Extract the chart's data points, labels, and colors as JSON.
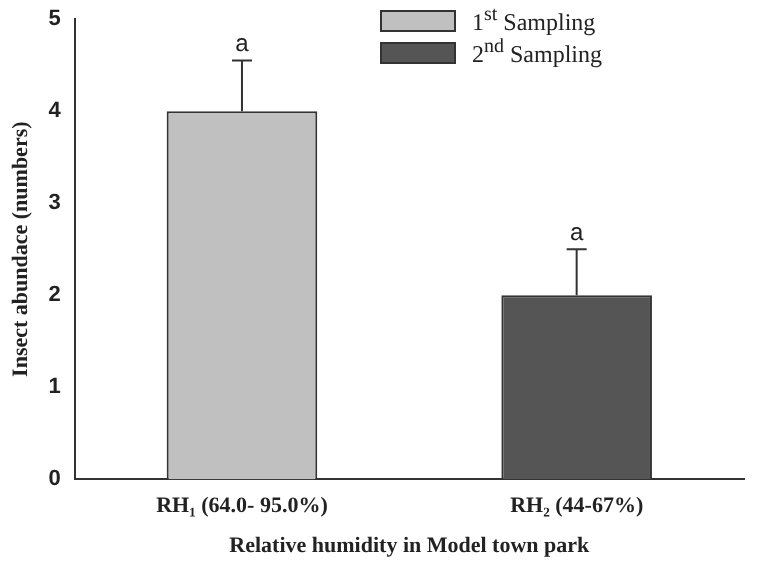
{
  "chart_data": {
    "type": "bar",
    "xlabel": "Relative humidity in Model town park",
    "ylabel": "Insect abundace (numbers)",
    "categories": [
      "RH₁ (64.0- 95.0%)",
      "RH₂ (44-67%)"
    ],
    "series": [
      {
        "name": "1$^{st}$ Sampling",
        "color": "#c0c0c0",
        "values": [
          4,
          null
        ],
        "errors": [
          [
            4,
            4.55
          ],
          null
        ]
      },
      {
        "name": "2$^{nd}$ Sampling",
        "color": "#555555",
        "values": [
          null,
          2
        ],
        "errors": [
          null,
          [
            2,
            2.5
          ]
        ]
      }
    ],
    "ylim": [
      0,
      5
    ],
    "yticks": [
      0,
      1,
      2,
      3,
      4,
      5
    ],
    "grid": false,
    "legend": "top right",
    "annotations": [
      {
        "text": "a",
        "x": "RH₁ (64.0- 95.0%)",
        "y": 4.55
      },
      {
        "text": "a",
        "x": "RH₂ (44-67%)",
        "y": 2.5
      }
    ]
  }
}
